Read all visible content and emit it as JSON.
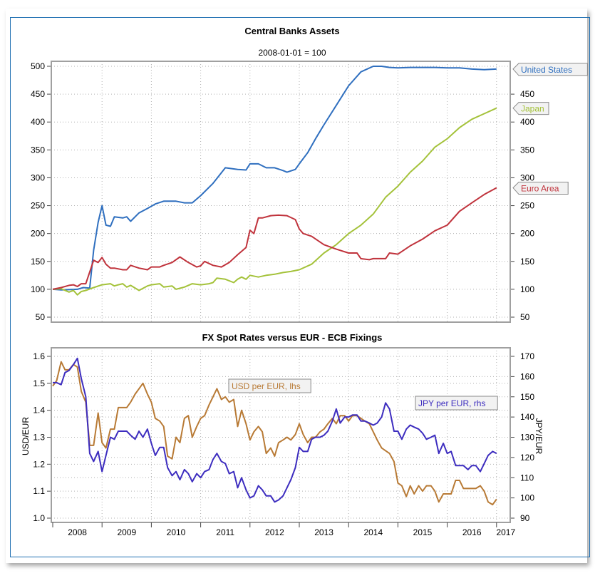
{
  "chart_data": [
    {
      "type": "line",
      "title": "Central Banks Assets",
      "subtitle": "2008-01-01 = 100",
      "xlabel": "",
      "ylabel": "",
      "x_ticks": [
        "2008",
        "2009",
        "2010",
        "2011",
        "2012",
        "2013",
        "2014",
        "2015",
        "2016",
        "2017"
      ],
      "y_ticks_left": [
        50,
        100,
        150,
        200,
        250,
        300,
        350,
        400,
        450,
        500
      ],
      "y_ticks_right": [
        50,
        100,
        150,
        200,
        250,
        300,
        350,
        400,
        450
      ],
      "ylim": [
        45,
        505
      ],
      "xlim": [
        2008.0,
        2017.3
      ],
      "grid": true,
      "legend": "end-labels-right",
      "series": [
        {
          "name": "United States",
          "color": "#2f6fbf",
          "x": [
            2008.0,
            2008.17,
            2008.5,
            2008.62,
            2008.75,
            2008.83,
            2008.92,
            2009.0,
            2009.08,
            2009.17,
            2009.25,
            2009.42,
            2009.5,
            2009.58,
            2009.75,
            2009.92,
            2010.08,
            2010.25,
            2010.5,
            2010.67,
            2010.83,
            2011.0,
            2011.25,
            2011.5,
            2011.75,
            2011.92,
            2012.0,
            2012.17,
            2012.33,
            2012.5,
            2012.67,
            2012.75,
            2012.92,
            2013.0,
            2013.17,
            2013.33,
            2013.5,
            2013.75,
            2014.0,
            2014.25,
            2014.5,
            2014.67,
            2014.83,
            2015.0,
            2015.25,
            2015.5,
            2015.75,
            2016.0,
            2016.25,
            2016.5,
            2016.75,
            2017.0
          ],
          "y": [
            100,
            99,
            100,
            103,
            102,
            170,
            220,
            250,
            215,
            213,
            230,
            228,
            230,
            222,
            237,
            245,
            253,
            258,
            258,
            255,
            255,
            268,
            290,
            318,
            315,
            314,
            325,
            325,
            318,
            318,
            313,
            310,
            315,
            325,
            345,
            370,
            395,
            430,
            465,
            490,
            500,
            500,
            498,
            497,
            498,
            498,
            498,
            497,
            497,
            495,
            494,
            495
          ]
        },
        {
          "name": "Japan",
          "color": "#a4c23a",
          "x": [
            2008.0,
            2008.17,
            2008.33,
            2008.42,
            2008.5,
            2008.58,
            2008.67,
            2008.83,
            2009.0,
            2009.17,
            2009.25,
            2009.33,
            2009.42,
            2009.5,
            2009.58,
            2009.75,
            2009.92,
            2010.0,
            2010.17,
            2010.25,
            2010.42,
            2010.5,
            2010.67,
            2010.83,
            2011.0,
            2011.17,
            2011.25,
            2011.33,
            2011.5,
            2011.67,
            2011.75,
            2011.83,
            2011.92,
            2012.0,
            2012.17,
            2012.33,
            2012.5,
            2012.67,
            2012.83,
            2013.0,
            2013.25,
            2013.5,
            2013.75,
            2014.0,
            2014.25,
            2014.5,
            2014.75,
            2015.0,
            2015.25,
            2015.5,
            2015.75,
            2016.0,
            2016.25,
            2016.5,
            2016.75,
            2017.0
          ],
          "y": [
            100,
            101,
            95,
            98,
            90,
            96,
            98,
            103,
            108,
            110,
            106,
            108,
            110,
            104,
            107,
            98,
            106,
            108,
            110,
            104,
            106,
            100,
            104,
            110,
            108,
            110,
            112,
            120,
            118,
            112,
            118,
            122,
            118,
            125,
            122,
            125,
            127,
            130,
            132,
            135,
            145,
            165,
            180,
            200,
            215,
            235,
            265,
            285,
            310,
            330,
            355,
            370,
            390,
            405,
            415,
            425
          ]
        },
        {
          "name": "Euro Area",
          "color": "#c0333c",
          "x": [
            2008.0,
            2008.17,
            2008.33,
            2008.42,
            2008.5,
            2008.58,
            2008.67,
            2008.83,
            2008.92,
            2009.0,
            2009.08,
            2009.17,
            2009.25,
            2009.42,
            2009.5,
            2009.58,
            2009.75,
            2009.92,
            2010.0,
            2010.17,
            2010.25,
            2010.42,
            2010.58,
            2010.75,
            2010.92,
            2011.0,
            2011.08,
            2011.25,
            2011.42,
            2011.58,
            2011.75,
            2011.92,
            2012.0,
            2012.08,
            2012.17,
            2012.25,
            2012.42,
            2012.58,
            2012.75,
            2012.92,
            2013.0,
            2013.08,
            2013.25,
            2013.5,
            2013.75,
            2014.0,
            2014.17,
            2014.25,
            2014.42,
            2014.5,
            2014.75,
            2014.83,
            2015.0,
            2015.25,
            2015.5,
            2015.75,
            2016.0,
            2016.25,
            2016.5,
            2016.75,
            2017.0
          ],
          "y": [
            100,
            103,
            107,
            108,
            105,
            110,
            110,
            152,
            148,
            157,
            145,
            138,
            138,
            135,
            135,
            143,
            138,
            135,
            140,
            140,
            143,
            148,
            158,
            148,
            140,
            142,
            150,
            143,
            140,
            148,
            162,
            175,
            206,
            200,
            228,
            228,
            232,
            233,
            232,
            225,
            208,
            200,
            195,
            180,
            172,
            165,
            165,
            155,
            153,
            155,
            155,
            165,
            163,
            178,
            190,
            205,
            215,
            240,
            255,
            270,
            282
          ]
        }
      ]
    },
    {
      "type": "line",
      "title": "FX Spot Rates versus EUR - ECB Fixings",
      "xlabel": "",
      "ylabel": "USD/EUR",
      "ylabel_right": "JPY/EUR",
      "x_ticks": [
        "2008",
        "2009",
        "2010",
        "2011",
        "2012",
        "2013",
        "2014",
        "2015",
        "2016",
        "2017"
      ],
      "y_ticks_left": [
        1.0,
        1.1,
        1.2,
        1.3,
        1.4,
        1.5,
        1.6
      ],
      "y_ticks_right": [
        90,
        100,
        110,
        120,
        130,
        140,
        150,
        160,
        170
      ],
      "ylim": [
        0.98,
        1.62
      ],
      "ylim_right": [
        89,
        172
      ],
      "xlim": [
        2008.0,
        2017.3
      ],
      "grid": true,
      "legend": "inline-labels",
      "series": [
        {
          "name": "USD per EUR, lhs",
          "axis": "left",
          "color": "#b87a35",
          "x": [
            2008.0,
            2008.08,
            2008.17,
            2008.25,
            2008.33,
            2008.42,
            2008.5,
            2008.58,
            2008.67,
            2008.75,
            2008.83,
            2008.92,
            2009.0,
            2009.08,
            2009.17,
            2009.25,
            2009.33,
            2009.42,
            2009.5,
            2009.58,
            2009.67,
            2009.75,
            2009.83,
            2009.92,
            2010.0,
            2010.08,
            2010.17,
            2010.25,
            2010.33,
            2010.42,
            2010.5,
            2010.58,
            2010.67,
            2010.75,
            2010.83,
            2010.92,
            2011.0,
            2011.08,
            2011.17,
            2011.25,
            2011.33,
            2011.42,
            2011.5,
            2011.58,
            2011.67,
            2011.75,
            2011.83,
            2011.92,
            2012.0,
            2012.08,
            2012.17,
            2012.25,
            2012.33,
            2012.42,
            2012.5,
            2012.58,
            2012.67,
            2012.75,
            2012.83,
            2012.92,
            2013.0,
            2013.08,
            2013.17,
            2013.25,
            2013.33,
            2013.42,
            2013.5,
            2013.58,
            2013.67,
            2013.75,
            2013.83,
            2013.92,
            2014.0,
            2014.08,
            2014.17,
            2014.25,
            2014.33,
            2014.42,
            2014.5,
            2014.58,
            2014.67,
            2014.75,
            2014.83,
            2014.92,
            2015.0,
            2015.08,
            2015.17,
            2015.25,
            2015.33,
            2015.42,
            2015.5,
            2015.58,
            2015.67,
            2015.75,
            2015.83,
            2015.92,
            2016.0,
            2016.08,
            2016.17,
            2016.25,
            2016.33,
            2016.42,
            2016.5,
            2016.58,
            2016.67,
            2016.75,
            2016.83,
            2016.92,
            2017.0
          ],
          "y": [
            1.49,
            1.51,
            1.58,
            1.55,
            1.55,
            1.57,
            1.56,
            1.47,
            1.43,
            1.27,
            1.27,
            1.39,
            1.28,
            1.26,
            1.33,
            1.33,
            1.41,
            1.41,
            1.41,
            1.43,
            1.46,
            1.48,
            1.5,
            1.46,
            1.43,
            1.37,
            1.36,
            1.34,
            1.23,
            1.22,
            1.3,
            1.28,
            1.37,
            1.38,
            1.3,
            1.34,
            1.37,
            1.38,
            1.42,
            1.45,
            1.48,
            1.44,
            1.45,
            1.43,
            1.44,
            1.34,
            1.4,
            1.35,
            1.29,
            1.32,
            1.34,
            1.32,
            1.24,
            1.26,
            1.23,
            1.28,
            1.29,
            1.3,
            1.29,
            1.31,
            1.35,
            1.31,
            1.28,
            1.3,
            1.3,
            1.32,
            1.33,
            1.35,
            1.37,
            1.35,
            1.38,
            1.38,
            1.36,
            1.38,
            1.38,
            1.37,
            1.36,
            1.35,
            1.32,
            1.29,
            1.26,
            1.25,
            1.24,
            1.21,
            1.13,
            1.12,
            1.08,
            1.12,
            1.09,
            1.12,
            1.1,
            1.12,
            1.12,
            1.1,
            1.06,
            1.09,
            1.09,
            1.09,
            1.14,
            1.14,
            1.11,
            1.11,
            1.11,
            1.11,
            1.12,
            1.1,
            1.06,
            1.05,
            1.07
          ]
        },
        {
          "name": "JPY per EUR, rhs",
          "axis": "right",
          "color": "#3d2dbf",
          "x": [
            2008.0,
            2008.08,
            2008.17,
            2008.25,
            2008.33,
            2008.42,
            2008.5,
            2008.58,
            2008.67,
            2008.75,
            2008.83,
            2008.92,
            2009.0,
            2009.08,
            2009.17,
            2009.25,
            2009.33,
            2009.42,
            2009.5,
            2009.58,
            2009.67,
            2009.75,
            2009.83,
            2009.92,
            2010.0,
            2010.08,
            2010.17,
            2010.25,
            2010.33,
            2010.42,
            2010.5,
            2010.58,
            2010.67,
            2010.75,
            2010.83,
            2010.92,
            2011.0,
            2011.08,
            2011.17,
            2011.25,
            2011.33,
            2011.42,
            2011.5,
            2011.58,
            2011.67,
            2011.75,
            2011.83,
            2011.92,
            2012.0,
            2012.08,
            2012.17,
            2012.25,
            2012.33,
            2012.42,
            2012.5,
            2012.58,
            2012.67,
            2012.75,
            2012.83,
            2012.92,
            2013.0,
            2013.08,
            2013.17,
            2013.25,
            2013.33,
            2013.42,
            2013.5,
            2013.58,
            2013.67,
            2013.75,
            2013.83,
            2013.92,
            2014.0,
            2014.08,
            2014.17,
            2014.25,
            2014.33,
            2014.42,
            2014.5,
            2014.58,
            2014.67,
            2014.75,
            2014.83,
            2014.92,
            2015.0,
            2015.08,
            2015.17,
            2015.25,
            2015.33,
            2015.42,
            2015.5,
            2015.58,
            2015.67,
            2015.75,
            2015.83,
            2015.92,
            2016.0,
            2016.08,
            2016.17,
            2016.25,
            2016.33,
            2016.42,
            2016.5,
            2016.58,
            2016.67,
            2016.75,
            2016.83,
            2016.92,
            2017.0
          ],
          "y": [
            157,
            157,
            156,
            162,
            163,
            166,
            169,
            159,
            150,
            122,
            118,
            123,
            113,
            121,
            130,
            129,
            133,
            133,
            133,
            131,
            129,
            133,
            130,
            134,
            127,
            121,
            125,
            125,
            115,
            111,
            113,
            109,
            114,
            112,
            108,
            112,
            110,
            113,
            114,
            119,
            122,
            118,
            117,
            112,
            113,
            105,
            110,
            104,
            100,
            101,
            106,
            104,
            101,
            101,
            98,
            99,
            101,
            105,
            109,
            115,
            125,
            123,
            123,
            129,
            130,
            130,
            131,
            133,
            138,
            144,
            137,
            140,
            140,
            141,
            141,
            138,
            138,
            137,
            136,
            137,
            140,
            147,
            144,
            133,
            133,
            129,
            134,
            136,
            135,
            134,
            132,
            129,
            130,
            131,
            122,
            127,
            122,
            123,
            116,
            116,
            116,
            114,
            116,
            116,
            113,
            117,
            121,
            123,
            122
          ]
        }
      ]
    }
  ]
}
